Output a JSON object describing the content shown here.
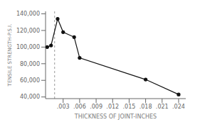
{
  "chart_data": {
    "type": "line",
    "xlabel": "THICKNESS OF JOINT-INCHES",
    "ylabel": "TENSILE STRENGTH-P.S.I.",
    "x": [
      0.0001,
      0.0008,
      0.002,
      0.003,
      0.005,
      0.006,
      0.018,
      0.024
    ],
    "values": [
      100000,
      102000,
      134000,
      118000,
      112000,
      87000,
      61000,
      43000
    ],
    "color": "#111111",
    "marker": "circle",
    "xlim": [
      -0.0002,
      0.0253
    ],
    "ylim": [
      38000,
      143000
    ],
    "xticks": [
      {
        "value": 0.003,
        "label": ".003"
      },
      {
        "value": 0.006,
        "label": ".006"
      },
      {
        "value": 0.009,
        "label": ".009"
      },
      {
        "value": 0.012,
        "label": ".012"
      },
      {
        "value": 0.015,
        "label": ".015"
      },
      {
        "value": 0.018,
        "label": ".018"
      },
      {
        "value": 0.021,
        "label": ".021"
      },
      {
        "value": 0.024,
        "label": ".024"
      }
    ],
    "yticks": [
      {
        "value": 40000,
        "label": "40,000"
      },
      {
        "value": 60000,
        "label": "60,000"
      },
      {
        "value": 80000,
        "label": "80,000"
      },
      {
        "value": 100000,
        "label": "100,000"
      },
      {
        "value": 120000,
        "label": "120,000"
      },
      {
        "value": 140000,
        "label": "140,000"
      }
    ],
    "grid": false,
    "reference_lines": [
      {
        "x": 0.00145,
        "color": "#999999",
        "line_style": "dashed"
      }
    ]
  }
}
